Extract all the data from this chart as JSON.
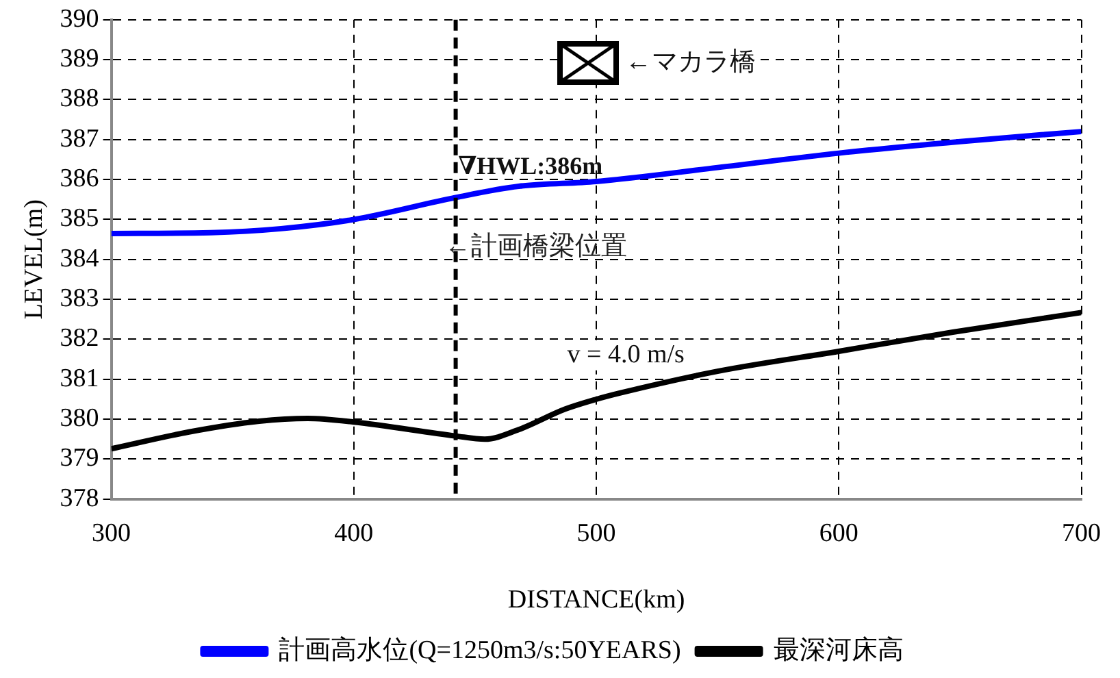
{
  "chart_data": {
    "type": "line",
    "xlabel": "DISTANCE(km)",
    "ylabel": "LEVEL(m)",
    "xlim": [
      300,
      700
    ],
    "xticks": [
      300,
      400,
      500,
      600,
      700
    ],
    "ylim": [
      378,
      390
    ],
    "yticks": [
      378,
      379,
      380,
      381,
      382,
      383,
      384,
      385,
      386,
      387,
      388,
      389,
      390
    ],
    "grid": true,
    "legend": "bottom",
    "marker": "none",
    "line_style": "solid",
    "series": [
      {
        "name": "計画高水位(Q=1250m3/s:50YEARS)",
        "color": "#0000ff",
        "x": [
          300,
          341,
          370,
          400,
          442,
          468,
          500,
          550,
          600,
          650,
          700
        ],
        "values": [
          384.65,
          384.67,
          384.77,
          385.0,
          385.55,
          385.83,
          385.95,
          386.3,
          386.66,
          386.95,
          387.2
        ]
      },
      {
        "name": "最深河床高",
        "color": "#000000",
        "x": [
          300,
          332,
          361,
          381,
          400,
          442,
          454,
          468,
          487,
          500,
          510,
          550,
          600,
          647,
          700
        ],
        "values": [
          379.26,
          379.68,
          379.95,
          380.02,
          379.93,
          379.58,
          379.5,
          379.74,
          380.25,
          380.5,
          380.66,
          381.2,
          381.7,
          382.18,
          382.67
        ]
      }
    ],
    "ref_lines": [
      {
        "axis": "x",
        "value": 442,
        "label": "←計画橋梁位置",
        "color": "#000000",
        "line_style": "dashed"
      }
    ],
    "annotations": [
      {
        "text": "∇HWL:386m",
        "x": 443,
        "y": 386.3
      },
      "←マカラ橋",
      "v = 4.0 m/s"
    ]
  }
}
